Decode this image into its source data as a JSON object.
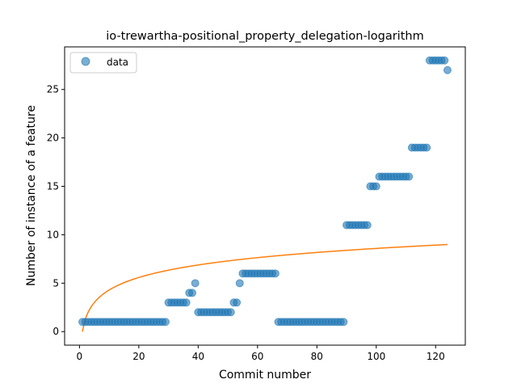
{
  "chart_data": {
    "type": "scatter",
    "title": "io-trewartha-positional_property_delegation-logarithm",
    "xlabel": "Commit number",
    "ylabel": "Number of instance of a feature",
    "xlim": [
      -5,
      130
    ],
    "ylim": [
      -1.4,
      29.4
    ],
    "xticks": [
      0,
      20,
      40,
      60,
      80,
      100,
      120
    ],
    "yticks": [
      0,
      5,
      10,
      15,
      20,
      25
    ],
    "grid": false,
    "legend": {
      "position": "top-left",
      "entries": [
        "data"
      ]
    },
    "colors": {
      "data": "#1f77b4",
      "fit": "#ff7f0e"
    },
    "series": [
      {
        "name": "data",
        "kind": "scatter",
        "x": [
          1,
          2,
          3,
          4,
          5,
          6,
          7,
          8,
          9,
          10,
          11,
          12,
          13,
          14,
          15,
          16,
          17,
          18,
          19,
          20,
          21,
          22,
          23,
          24,
          25,
          26,
          27,
          28,
          29,
          30,
          31,
          32,
          33,
          34,
          35,
          36,
          37,
          38,
          39,
          40,
          41,
          42,
          43,
          44,
          45,
          46,
          47,
          48,
          49,
          50,
          51,
          52,
          53,
          54,
          55,
          56,
          57,
          58,
          59,
          60,
          61,
          62,
          63,
          64,
          65,
          66,
          67,
          68,
          69,
          70,
          71,
          72,
          73,
          74,
          75,
          76,
          77,
          78,
          79,
          80,
          81,
          82,
          83,
          84,
          85,
          86,
          87,
          88,
          89,
          90,
          91,
          92,
          93,
          94,
          95,
          96,
          97,
          98,
          99,
          100,
          101,
          102,
          103,
          104,
          105,
          106,
          107,
          108,
          109,
          110,
          111,
          112,
          113,
          114,
          115,
          116,
          117,
          118,
          119,
          120,
          121,
          122,
          123,
          124
        ],
        "y": [
          1,
          1,
          1,
          1,
          1,
          1,
          1,
          1,
          1,
          1,
          1,
          1,
          1,
          1,
          1,
          1,
          1,
          1,
          1,
          1,
          1,
          1,
          1,
          1,
          1,
          1,
          1,
          1,
          1,
          3,
          3,
          3,
          3,
          3,
          3,
          3,
          4,
          4,
          5,
          2,
          2,
          2,
          2,
          2,
          2,
          2,
          2,
          2,
          2,
          2,
          2,
          3,
          3,
          5,
          6,
          6,
          6,
          6,
          6,
          6,
          6,
          6,
          6,
          6,
          6,
          6,
          1,
          1,
          1,
          1,
          1,
          1,
          1,
          1,
          1,
          1,
          1,
          1,
          1,
          1,
          1,
          1,
          1,
          1,
          1,
          1,
          1,
          1,
          1,
          11,
          11,
          11,
          11,
          11,
          11,
          11,
          11,
          15,
          15,
          15,
          16,
          16,
          16,
          16,
          16,
          16,
          16,
          16,
          16,
          16,
          16,
          19,
          19,
          19,
          19,
          19,
          19,
          28,
          28,
          28,
          28,
          28,
          28,
          27
        ]
      },
      {
        "name": "",
        "kind": "line",
        "model": "logarithm",
        "x_range": [
          1,
          124
        ],
        "a": 1.865,
        "b": 0
      }
    ]
  }
}
